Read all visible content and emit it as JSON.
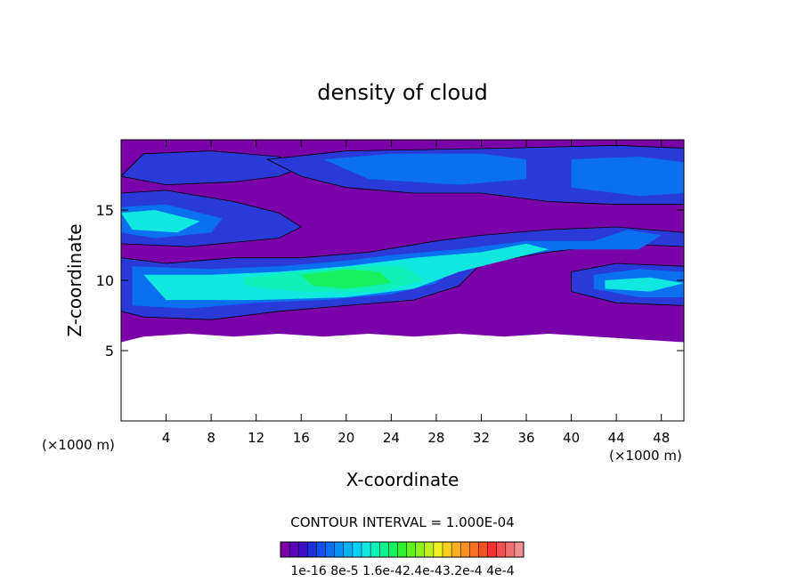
{
  "chart_data": {
    "type": "heatmap",
    "title": "density of cloud",
    "xlabel": "X-coordinate",
    "ylabel": "Z-coordinate",
    "x_unit": "(×1000 m)",
    "y_unit": "(×1000 m)",
    "xlim": [
      0,
      50
    ],
    "ylim": [
      0,
      20
    ],
    "x_ticks": [
      "4",
      "8",
      "12",
      "16",
      "20",
      "24",
      "28",
      "32",
      "36",
      "40",
      "44",
      "48"
    ],
    "x_tick_values": [
      4,
      8,
      12,
      16,
      20,
      24,
      28,
      32,
      36,
      40,
      44,
      48
    ],
    "y_ticks": [
      "5",
      "10",
      "15"
    ],
    "y_tick_values": [
      5,
      10,
      15
    ],
    "contour_interval": "CONTOUR INTERVAL = 1.000E-04",
    "colorbar_labels": "1e-16 8e-5 1.6e-42.4e-43.2e-4 4e-4",
    "colorbar_colors": [
      "#7a00a8",
      "#5a00b8",
      "#3a10c8",
      "#1a30d8",
      "#1050e8",
      "#0a70f0",
      "#0990f5",
      "#08b0f8",
      "#08d0f8",
      "#10e8e0",
      "#10f0b8",
      "#10f090",
      "#18f060",
      "#30f030",
      "#60f020",
      "#90f020",
      "#c0f020",
      "#f0f020",
      "#f8d020",
      "#f8b020",
      "#f89020",
      "#f87020",
      "#f85020",
      "#f83030",
      "#f05050",
      "#f07070",
      "#f09090"
    ],
    "colors": {
      "no_data": "#ffffff",
      "background": "#7a00a8",
      "contour_line": "#000000"
    },
    "regions": [
      {
        "level": "8e-5",
        "color": "#2a3ad8",
        "poly": [
          [
            0,
            17.4
          ],
          [
            2,
            19.0
          ],
          [
            8,
            19.2
          ],
          [
            14,
            18.8
          ],
          [
            16,
            18.0
          ],
          [
            14,
            17.4
          ],
          [
            10,
            17.0
          ],
          [
            4,
            16.8
          ]
        ]
      },
      {
        "level": "8e-5",
        "color": "#2a3ad8",
        "poly": [
          [
            13,
            18.6
          ],
          [
            20,
            19.2
          ],
          [
            34,
            19.4
          ],
          [
            44,
            19.6
          ],
          [
            50,
            19.4
          ],
          [
            50,
            15.4
          ],
          [
            44,
            15.4
          ],
          [
            38,
            15.6
          ],
          [
            32,
            16.2
          ],
          [
            26,
            16.2
          ],
          [
            20,
            16.6
          ],
          [
            16,
            17.4
          ]
        ]
      },
      {
        "level": "8e-5",
        "color": "#2a3ad8",
        "poly": [
          [
            0,
            16.2
          ],
          [
            4,
            16.4
          ],
          [
            10,
            15.6
          ],
          [
            14,
            14.8
          ],
          [
            16,
            13.8
          ],
          [
            14,
            13.0
          ],
          [
            6,
            12.4
          ],
          [
            0,
            12.6
          ]
        ]
      },
      {
        "level": "8e-5",
        "color": "#2a3ad8",
        "poly": [
          [
            0,
            11.6
          ],
          [
            4,
            11.2
          ],
          [
            10,
            11.6
          ],
          [
            16,
            11.6
          ],
          [
            22,
            12.0
          ],
          [
            28,
            12.8
          ],
          [
            32,
            13.2
          ],
          [
            38,
            13.6
          ],
          [
            44,
            13.8
          ],
          [
            50,
            13.4
          ],
          [
            50,
            12.4
          ],
          [
            44,
            12.6
          ],
          [
            38,
            12.0
          ],
          [
            32,
            11.2
          ],
          [
            30,
            9.6
          ],
          [
            26,
            8.6
          ],
          [
            20,
            8.2
          ],
          [
            14,
            7.8
          ],
          [
            8,
            7.2
          ],
          [
            2,
            7.4
          ],
          [
            0,
            7.8
          ]
        ]
      },
      {
        "level": "8e-5",
        "color": "#2a3ad8",
        "poly": [
          [
            40,
            10.6
          ],
          [
            44,
            11.2
          ],
          [
            50,
            11.0
          ],
          [
            50,
            8.2
          ],
          [
            44,
            8.4
          ],
          [
            40,
            9.2
          ]
        ]
      },
      {
        "level": "1.6e-4",
        "color": "#0a70f0",
        "poly": [
          [
            18,
            18.6
          ],
          [
            24,
            19.0
          ],
          [
            32,
            19.0
          ],
          [
            36,
            18.6
          ],
          [
            36,
            17.2
          ],
          [
            30,
            16.8
          ],
          [
            22,
            17.2
          ]
        ]
      },
      {
        "level": "1.6e-4",
        "color": "#0a70f0",
        "poly": [
          [
            40,
            18.6
          ],
          [
            46,
            18.8
          ],
          [
            50,
            18.4
          ],
          [
            50,
            16.2
          ],
          [
            46,
            16.0
          ],
          [
            40,
            16.6
          ]
        ]
      },
      {
        "level": "1.6e-4",
        "color": "#0a70f0",
        "poly": [
          [
            0,
            15.2
          ],
          [
            4,
            15.4
          ],
          [
            9,
            14.4
          ],
          [
            8,
            13.4
          ],
          [
            3,
            13.0
          ],
          [
            0,
            13.4
          ]
        ]
      },
      {
        "level": "1.6e-4",
        "color": "#0a70f0",
        "poly": [
          [
            1,
            11.0
          ],
          [
            8,
            10.8
          ],
          [
            14,
            11.0
          ],
          [
            20,
            11.4
          ],
          [
            24,
            11.8
          ],
          [
            30,
            12.2
          ],
          [
            36,
            12.8
          ],
          [
            42,
            12.8
          ],
          [
            45,
            13.6
          ],
          [
            48,
            13.2
          ],
          [
            46,
            12.2
          ],
          [
            40,
            12.2
          ],
          [
            34,
            11.8
          ],
          [
            30,
            11.0
          ],
          [
            28,
            9.8
          ],
          [
            24,
            9.0
          ],
          [
            18,
            8.6
          ],
          [
            12,
            8.4
          ],
          [
            6,
            8.0
          ],
          [
            1,
            8.2
          ]
        ]
      },
      {
        "level": "1.6e-4",
        "color": "#0a70f0",
        "poly": [
          [
            42,
            10.4
          ],
          [
            46,
            10.8
          ],
          [
            50,
            10.6
          ],
          [
            50,
            8.8
          ],
          [
            46,
            8.8
          ],
          [
            42,
            9.4
          ]
        ]
      },
      {
        "level": "2.4e-4",
        "color": "#10e8e0",
        "poly": [
          [
            0,
            14.8
          ],
          [
            3,
            15.0
          ],
          [
            7,
            14.2
          ],
          [
            5,
            13.4
          ],
          [
            1,
            13.6
          ]
        ]
      },
      {
        "level": "2.4e-4",
        "color": "#10e8e0",
        "poly": [
          [
            2,
            10.4
          ],
          [
            8,
            10.4
          ],
          [
            14,
            10.6
          ],
          [
            20,
            11.0
          ],
          [
            26,
            11.6
          ],
          [
            32,
            12.0
          ],
          [
            36,
            12.6
          ],
          [
            38,
            12.2
          ],
          [
            34,
            11.4
          ],
          [
            30,
            10.6
          ],
          [
            26,
            9.4
          ],
          [
            20,
            8.8
          ],
          [
            12,
            8.6
          ],
          [
            4,
            8.6
          ]
        ]
      },
      {
        "level": "2.4e-4",
        "color": "#10e8e0",
        "poly": [
          [
            43,
            10.0
          ],
          [
            47,
            10.2
          ],
          [
            50,
            9.8
          ],
          [
            47,
            9.2
          ],
          [
            43,
            9.4
          ]
        ]
      },
      {
        "level": "3.2e-4",
        "color": "#10f0b8",
        "poly": [
          [
            11,
            10.2
          ],
          [
            16,
            10.6
          ],
          [
            21,
            11.0
          ],
          [
            25,
            11.0
          ],
          [
            27,
            10.0
          ],
          [
            23,
            9.2
          ],
          [
            16,
            9.2
          ],
          [
            11,
            9.6
          ]
        ]
      },
      {
        "level": "4e-4",
        "color": "#18f060",
        "poly": [
          [
            16,
            10.4
          ],
          [
            20,
            10.8
          ],
          [
            23,
            10.6
          ],
          [
            24,
            9.8
          ],
          [
            20,
            9.4
          ],
          [
            17,
            9.6
          ]
        ]
      },
      {
        "level": "no_data",
        "color": "#ffffff",
        "poly": [
          [
            0,
            0
          ],
          [
            50,
            0
          ],
          [
            50,
            5.6
          ],
          [
            46,
            5.8
          ],
          [
            42,
            6.0
          ],
          [
            38,
            6.2
          ],
          [
            34,
            6.0
          ],
          [
            30,
            6.2
          ],
          [
            26,
            6.0
          ],
          [
            22,
            6.2
          ],
          [
            18,
            6.0
          ],
          [
            14,
            6.2
          ],
          [
            10,
            6.0
          ],
          [
            6,
            6.2
          ],
          [
            2,
            6.0
          ],
          [
            0,
            5.6
          ]
        ]
      }
    ]
  }
}
